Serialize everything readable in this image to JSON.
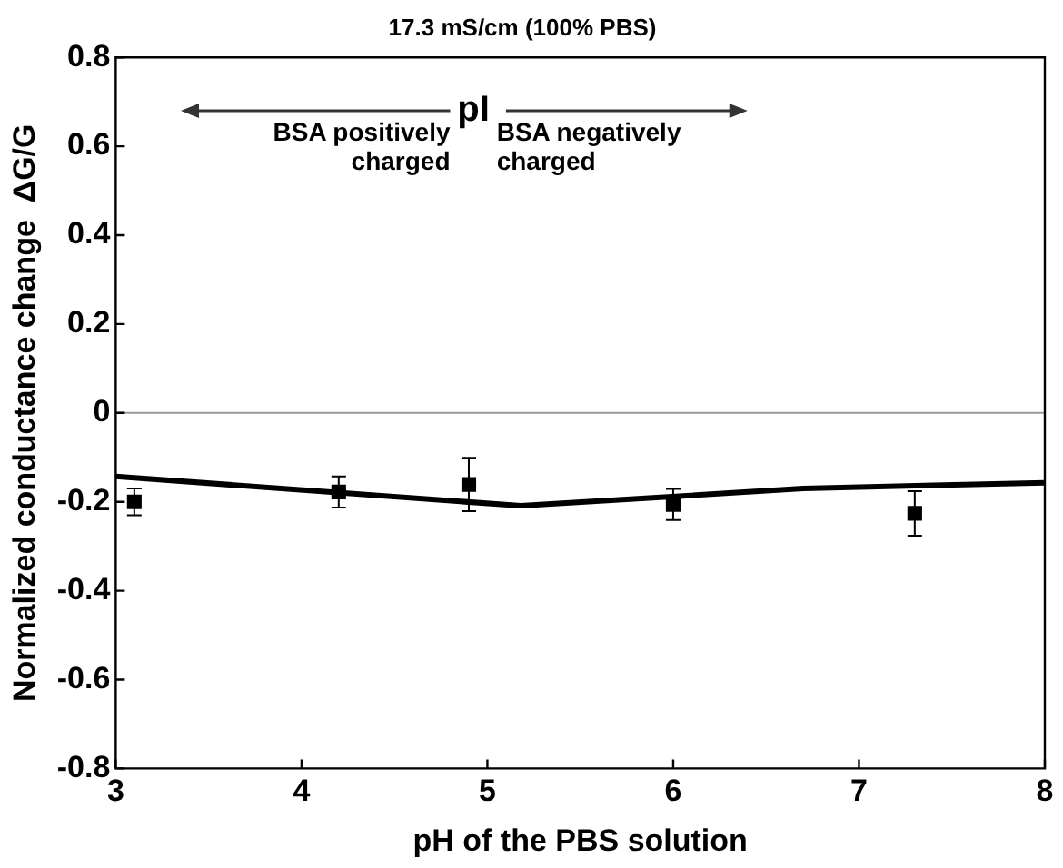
{
  "chart_data": {
    "type": "scatter",
    "title": "17.3 mS/cm (100% PBS)",
    "xlabel": "pH of the PBS solution",
    "ylabel": "Normalized conductance change  ΔG/G",
    "series": [
      {
        "color": "#000000",
        "marker": "square",
        "x": [
          3.1,
          4.2,
          4.9,
          6.0,
          7.3
        ],
        "values": [
          -0.2,
          -0.178,
          -0.161,
          -0.206,
          -0.226
        ],
        "errors": [
          0.03,
          0.035,
          0.06,
          0.035,
          0.05
        ]
      },
      {
        "type": "line",
        "color": "#000000",
        "marker": "none",
        "line_style": "solid",
        "x": [
          3,
          5.18,
          6.7,
          8
        ],
        "values": [
          -0.143,
          -0.209,
          -0.17,
          -0.157
        ]
      }
    ],
    "xlim": [
      3,
      8
    ],
    "xticks": [
      3,
      4,
      5,
      6,
      7,
      8
    ],
    "ylim": [
      -0.8,
      0.8
    ],
    "yticks": [
      -0.8,
      -0.6,
      -0.4,
      -0.2,
      0,
      0.2,
      0.4,
      0.6,
      0.8
    ],
    "ref_lines": [
      {
        "axis": "y",
        "value": 0,
        "color": "#999999"
      }
    ],
    "annotations": [
      "pI",
      "BSA positively\ncharged",
      "BSA negatively\ncharged"
    ],
    "grid": false,
    "legend": false
  }
}
